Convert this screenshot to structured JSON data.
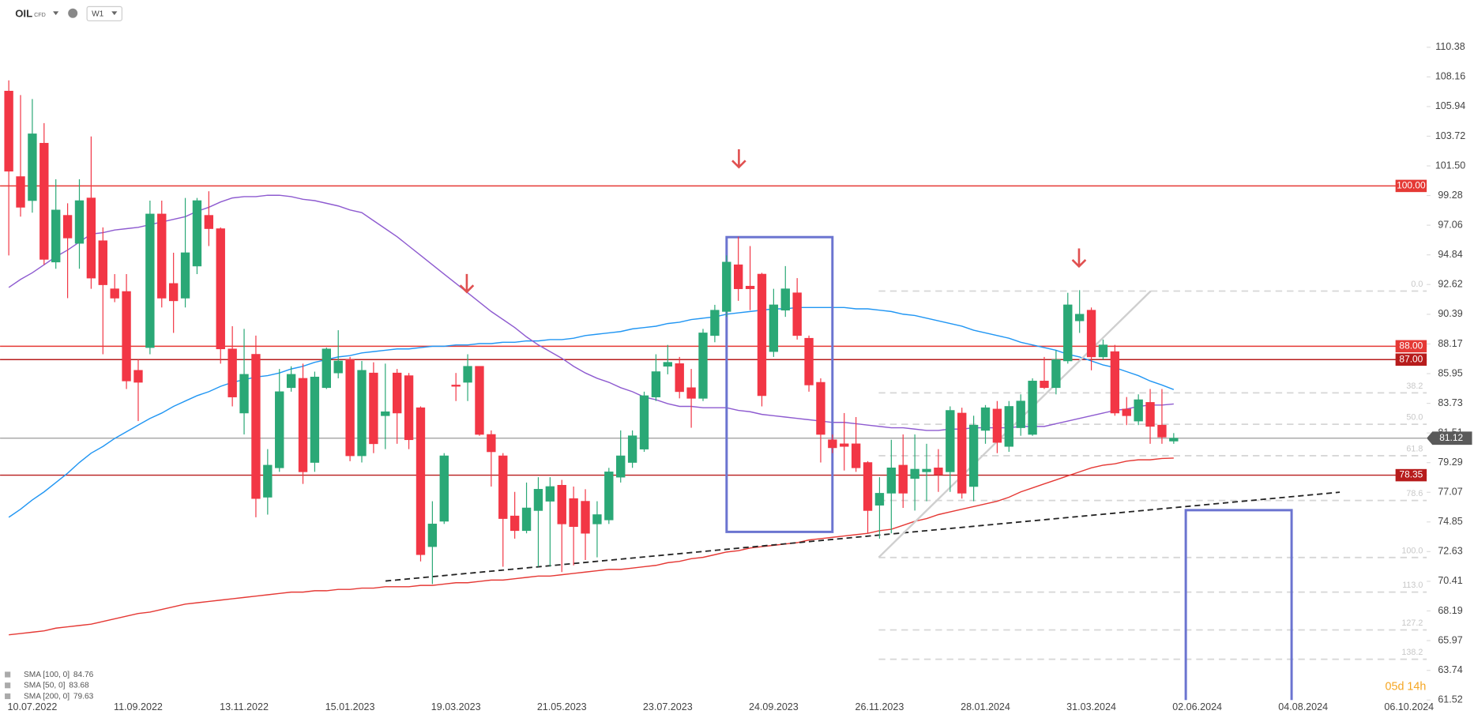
{
  "header": {
    "symbol": "OIL",
    "instrument": "CFD",
    "timeframe": "W1"
  },
  "chart_data": {
    "type": "candlestick",
    "categories": [
      null,
      null,
      "10.07.2022",
      null,
      null,
      null,
      null,
      null,
      null,
      null,
      null,
      "11.09.2022",
      null,
      null,
      null,
      null,
      null,
      null,
      null,
      null,
      "13.11.2022",
      null,
      null,
      null,
      null,
      null,
      null,
      null,
      null,
      "15.01.2023",
      null,
      null,
      null,
      null,
      null,
      null,
      null,
      null,
      "19.03.2023",
      null,
      null,
      null,
      null,
      null,
      null,
      null,
      null,
      "21.05.2023",
      null,
      null,
      null,
      null,
      null,
      null,
      null,
      null,
      "23.07.2023",
      null,
      null,
      null,
      null,
      null,
      null,
      null,
      null,
      "24.09.2023",
      null,
      null,
      null,
      null,
      null,
      null,
      null,
      null,
      "26.11.2023",
      null,
      null,
      null,
      null,
      null,
      null,
      null,
      null,
      "28.01.2024",
      null,
      null,
      null,
      null,
      null,
      null,
      null,
      null,
      "31.03.2024",
      null,
      null,
      null,
      null,
      null,
      null,
      null,
      null,
      "02.06.2024",
      null,
      null,
      null,
      null,
      null,
      null,
      null,
      null,
      "04.08.2024",
      null,
      null,
      null,
      null,
      null,
      null,
      null,
      null,
      "06.10.2024",
      null
    ],
    "open": [
      107.1,
      100.7,
      98.9,
      103.2,
      94.3,
      97.8,
      95.7,
      99.1,
      95.9,
      92.3,
      92.1,
      86.2,
      87.9,
      97.9,
      92.7,
      91.6,
      94.0,
      97.8,
      96.8,
      87.8,
      83.0,
      87.4,
      76.7,
      78.9,
      84.9,
      85.6,
      79.3,
      84.9,
      86.0,
      87.0,
      79.8,
      86.0,
      82.8,
      86.0,
      85.8,
      83.4,
      73.0,
      74.9,
      85.1,
      85.3,
      86.5,
      81.4,
      79.8,
      75.3,
      74.2,
      75.7,
      76.4,
      77.6,
      76.6,
      76.4,
      74.7,
      75.0,
      78.2,
      79.3,
      80.3,
      84.2,
      86.5,
      86.7,
      84.9,
      84.1,
      88.8,
      90.6,
      94.1,
      92.5,
      93.4,
      87.6,
      90.7,
      92.0,
      88.6,
      85.3,
      81.0,
      80.7,
      80.7,
      79.3,
      76.1,
      77.0,
      79.1,
      78.1,
      78.6,
      78.9,
      78.6,
      83.0,
      77.5,
      81.7,
      83.3,
      80.5,
      81.9,
      81.4,
      85.4,
      84.9,
      86.9,
      89.9,
      90.7,
      87.2,
      87.6,
      83.3,
      82.4,
      83.8,
      82.1,
      80.9,
      null,
      null,
      null,
      null,
      null,
      null,
      null,
      null,
      null,
      null,
      null,
      null,
      null,
      null,
      null,
      null,
      null,
      null,
      null,
      null,
      null
    ],
    "high": [
      107.9,
      106.8,
      106.5,
      104.7,
      100.5,
      98.7,
      100.5,
      103.7,
      96.9,
      93.4,
      93.4,
      87.0,
      98.9,
      98.9,
      95.0,
      99.1,
      99.1,
      99.6,
      96.9,
      89.5,
      89.3,
      88.8,
      80.3,
      86.3,
      86.5,
      86.7,
      86.1,
      87.9,
      89.2,
      87.2,
      86.9,
      86.8,
      86.7,
      86.3,
      86.0,
      83.5,
      76.4,
      80.0,
      86.0,
      87.4,
      86.5,
      81.7,
      80.0,
      77.1,
      77.8,
      78.2,
      78.2,
      78.0,
      77.5,
      77.3,
      76.4,
      78.9,
      81.7,
      81.7,
      84.6,
      87.4,
      88.1,
      87.2,
      86.3,
      89.3,
      91.1,
      94.8,
      96.2,
      95.5,
      93.5,
      92.3,
      94.0,
      93.1,
      88.8,
      85.6,
      81.4,
      83.0,
      82.7,
      79.4,
      78.2,
      81.0,
      81.4,
      81.4,
      80.7,
      80.3,
      83.5,
      83.4,
      82.8,
      83.6,
      83.9,
      83.9,
      84.4,
      85.6,
      87.2,
      87.7,
      92.0,
      92.2,
      90.9,
      88.5,
      88.1,
      84.2,
      84.4,
      84.8,
      84.8,
      81.5,
      null,
      null,
      null,
      null,
      null,
      null,
      null,
      null,
      null,
      null,
      null,
      null,
      null,
      null,
      null,
      null,
      null,
      null,
      null,
      null,
      null
    ],
    "low": [
      94.8,
      97.7,
      98.0,
      94.1,
      93.8,
      91.6,
      93.8,
      92.3,
      87.4,
      91.3,
      84.8,
      82.4,
      87.4,
      90.9,
      89.0,
      90.9,
      93.4,
      95.5,
      86.7,
      83.5,
      81.4,
      75.2,
      75.4,
      78.6,
      84.6,
      77.7,
      78.6,
      84.8,
      85.6,
      79.4,
      79.3,
      80.0,
      80.3,
      80.7,
      80.3,
      71.9,
      70.2,
      74.7,
      83.9,
      83.9,
      81.3,
      77.5,
      71.5,
      73.6,
      74.0,
      71.5,
      71.5,
      71.1,
      71.6,
      72.0,
      72.2,
      74.7,
      77.8,
      78.9,
      80.1,
      83.9,
      85.9,
      84.1,
      81.9,
      83.9,
      88.3,
      90.2,
      91.4,
      90.7,
      83.5,
      87.2,
      90.2,
      88.5,
      84.6,
      79.3,
      80.0,
      78.7,
      78.6,
      74.0,
      73.6,
      74.0,
      75.9,
      75.7,
      76.4,
      77.1,
      77.1,
      76.6,
      76.4,
      80.7,
      80.0,
      80.1,
      81.3,
      81.3,
      84.8,
      84.4,
      86.7,
      89.0,
      86.2,
      87.0,
      82.8,
      82.1,
      82.1,
      80.7,
      80.7,
      80.7,
      null,
      null,
      null,
      null,
      null,
      null,
      null,
      null,
      null,
      null,
      null,
      null,
      null,
      null,
      null,
      null,
      null,
      null,
      null,
      null,
      null
    ],
    "close": [
      101.1,
      98.4,
      103.9,
      94.5,
      98.2,
      96.1,
      98.9,
      93.1,
      92.6,
      91.6,
      85.4,
      85.3,
      97.9,
      91.6,
      91.4,
      95.0,
      98.9,
      96.8,
      87.8,
      84.2,
      85.9,
      76.6,
      79.1,
      84.6,
      85.9,
      78.6,
      85.7,
      87.8,
      86.9,
      79.8,
      86.2,
      80.7,
      83.1,
      83.0,
      81.0,
      72.4,
      74.7,
      79.8,
      85.0,
      86.5,
      81.4,
      80.1,
      75.1,
      74.2,
      75.9,
      77.3,
      77.5,
      74.7,
      74.5,
      74.0,
      75.4,
      78.6,
      79.8,
      81.3,
      84.3,
      86.1,
      86.8,
      84.6,
      84.1,
      89.0,
      90.7,
      94.3,
      92.3,
      92.3,
      84.3,
      91.1,
      92.3,
      88.8,
      85.1,
      81.4,
      80.4,
      80.5,
      78.9,
      75.7,
      77.0,
      78.9,
      77.0,
      78.8,
      78.8,
      78.4,
      83.2,
      77.0,
      82.1,
      83.4,
      80.8,
      83.5,
      83.9,
      85.4,
      84.9,
      87.0,
      91.1,
      90.4,
      87.2,
      88.1,
      83.0,
      82.8,
      84.0,
      82.0,
      81.2,
      81.12,
      null,
      null,
      null,
      null,
      null,
      null,
      null,
      null,
      null,
      null,
      null,
      null,
      null,
      null,
      null,
      null,
      null,
      null,
      null,
      null,
      null
    ],
    "up_color": "#2aa876",
    "down_color": "#f23645",
    "series": [
      {
        "name": "SMA [100, 0]",
        "color": "#2196f3",
        "values": [
          75.2,
          75.8,
          76.5,
          77.1,
          77.8,
          78.5,
          79.3,
          80.0,
          80.5,
          81.1,
          81.6,
          82.1,
          82.6,
          83.0,
          83.5,
          83.9,
          84.3,
          84.6,
          85.0,
          85.3,
          85.5,
          85.7,
          85.8,
          86.0,
          86.3,
          86.5,
          86.8,
          87.0,
          87.2,
          87.3,
          87.5,
          87.6,
          87.7,
          87.8,
          87.8,
          87.9,
          88.0,
          88.0,
          88.1,
          88.1,
          88.2,
          88.2,
          88.3,
          88.3,
          88.4,
          88.4,
          88.5,
          88.5,
          88.6,
          88.8,
          88.9,
          89.0,
          89.1,
          89.3,
          89.4,
          89.5,
          89.7,
          89.8,
          90.0,
          90.1,
          90.2,
          90.4,
          90.5,
          90.6,
          90.7,
          90.8,
          90.8,
          90.9,
          90.9,
          90.9,
          90.9,
          90.9,
          90.8,
          90.8,
          90.7,
          90.6,
          90.4,
          90.3,
          90.1,
          89.9,
          89.7,
          89.5,
          89.2,
          89.0,
          88.8,
          88.6,
          88.3,
          88.1,
          87.9,
          87.7,
          87.4,
          87.2,
          86.9,
          86.6,
          86.4,
          86.1,
          85.8,
          85.4,
          85.1,
          84.76,
          null,
          null,
          null,
          null,
          null,
          null,
          null,
          null,
          null,
          null,
          null,
          null,
          null,
          null,
          null,
          null,
          null,
          null,
          null,
          null,
          null
        ]
      },
      {
        "name": "SMA [50, 0]",
        "color": "#8e5bd0",
        "values": [
          92.4,
          93.0,
          93.5,
          94.1,
          94.7,
          95.2,
          95.8,
          96.4,
          96.5,
          96.7,
          96.8,
          96.9,
          97.1,
          97.3,
          97.5,
          97.7,
          98.1,
          98.4,
          98.8,
          99.1,
          99.2,
          99.2,
          99.3,
          99.3,
          99.2,
          99.0,
          98.9,
          98.7,
          98.5,
          98.2,
          98.0,
          97.4,
          96.8,
          96.2,
          95.5,
          94.8,
          94.1,
          93.4,
          92.7,
          92.0,
          91.3,
          90.6,
          90.0,
          89.4,
          88.7,
          88.1,
          87.6,
          87.1,
          86.5,
          86.0,
          85.6,
          85.3,
          84.9,
          84.6,
          84.2,
          84.0,
          83.7,
          83.5,
          83.5,
          83.4,
          83.4,
          83.4,
          83.2,
          83.1,
          82.9,
          82.8,
          82.7,
          82.6,
          82.5,
          82.4,
          82.3,
          82.3,
          82.2,
          82.1,
          82.0,
          81.9,
          81.9,
          81.8,
          81.7,
          81.7,
          81.8,
          81.8,
          81.9,
          81.9,
          81.9,
          81.9,
          82.0,
          82.0,
          82.0,
          82.2,
          82.4,
          82.6,
          82.8,
          83.0,
          83.2,
          83.3,
          83.5,
          83.6,
          83.6,
          83.68,
          null,
          null,
          null,
          null,
          null,
          null,
          null,
          null,
          null,
          null,
          null,
          null,
          null,
          null,
          null,
          null,
          null,
          null,
          null,
          null,
          null
        ]
      },
      {
        "name": "SMA [200, 0]",
        "color": "#e53935",
        "values": [
          66.4,
          66.5,
          66.6,
          66.7,
          66.9,
          67.0,
          67.1,
          67.2,
          67.4,
          67.6,
          67.8,
          68.0,
          68.1,
          68.3,
          68.5,
          68.7,
          68.8,
          68.9,
          69.0,
          69.1,
          69.2,
          69.3,
          69.4,
          69.5,
          69.6,
          69.6,
          69.7,
          69.7,
          69.8,
          69.8,
          69.9,
          69.9,
          70.0,
          70.0,
          70.0,
          70.1,
          70.1,
          70.2,
          70.3,
          70.3,
          70.4,
          70.5,
          70.5,
          70.6,
          70.7,
          70.8,
          70.8,
          70.9,
          71.0,
          71.1,
          71.2,
          71.3,
          71.3,
          71.4,
          71.5,
          71.6,
          71.8,
          71.9,
          72.1,
          72.2,
          72.4,
          72.6,
          72.7,
          72.9,
          73.0,
          73.1,
          73.2,
          73.3,
          73.5,
          73.6,
          73.7,
          73.8,
          73.9,
          74.0,
          74.2,
          74.3,
          74.6,
          74.9,
          75.1,
          75.4,
          75.6,
          75.8,
          76.0,
          76.2,
          76.4,
          76.7,
          77.1,
          77.4,
          77.7,
          78.0,
          78.3,
          78.6,
          78.9,
          79.1,
          79.2,
          79.4,
          79.5,
          79.5,
          79.6,
          79.63,
          null,
          null,
          null,
          null,
          null,
          null,
          null,
          null,
          null,
          null,
          null,
          null,
          null,
          null,
          null,
          null,
          null,
          null,
          null,
          null,
          null
        ]
      }
    ],
    "ylim": [
      61.52,
      110.38
    ],
    "yticks": [
      110.38,
      108.16,
      105.94,
      103.72,
      {
        "value": 101.5,
        "label": "101.50"
      },
      99.28,
      97.06,
      94.84,
      92.62,
      90.39,
      88.17,
      85.95,
      83.73,
      81.51,
      79.29,
      77.07,
      74.85,
      72.63,
      70.41,
      68.19,
      65.97,
      63.74,
      61.52
    ],
    "levels": [
      {
        "value": 100,
        "label": "100.00",
        "color": "#e53935"
      },
      {
        "value": 88,
        "label": "88.00",
        "color": "#e53935"
      },
      {
        "value": 87,
        "label": "87.00",
        "color": "#b71c1c"
      },
      {
        "value": 78.35,
        "color": "#b71c1c"
      }
    ],
    "fibonacci": {
      "start": 92.13,
      "end": 72.19,
      "levels": [
        {
          "value": 0,
          "label": "0.0"
        },
        38.2,
        {
          "value": 50,
          "label": "50.0"
        },
        61.8,
        78.6,
        {
          "value": 100,
          "label": "100.0"
        },
        {
          "value": 113,
          "label": "113.0"
        },
        127.2,
        138.2
      ]
    },
    "countdown": "05d 14h"
  }
}
